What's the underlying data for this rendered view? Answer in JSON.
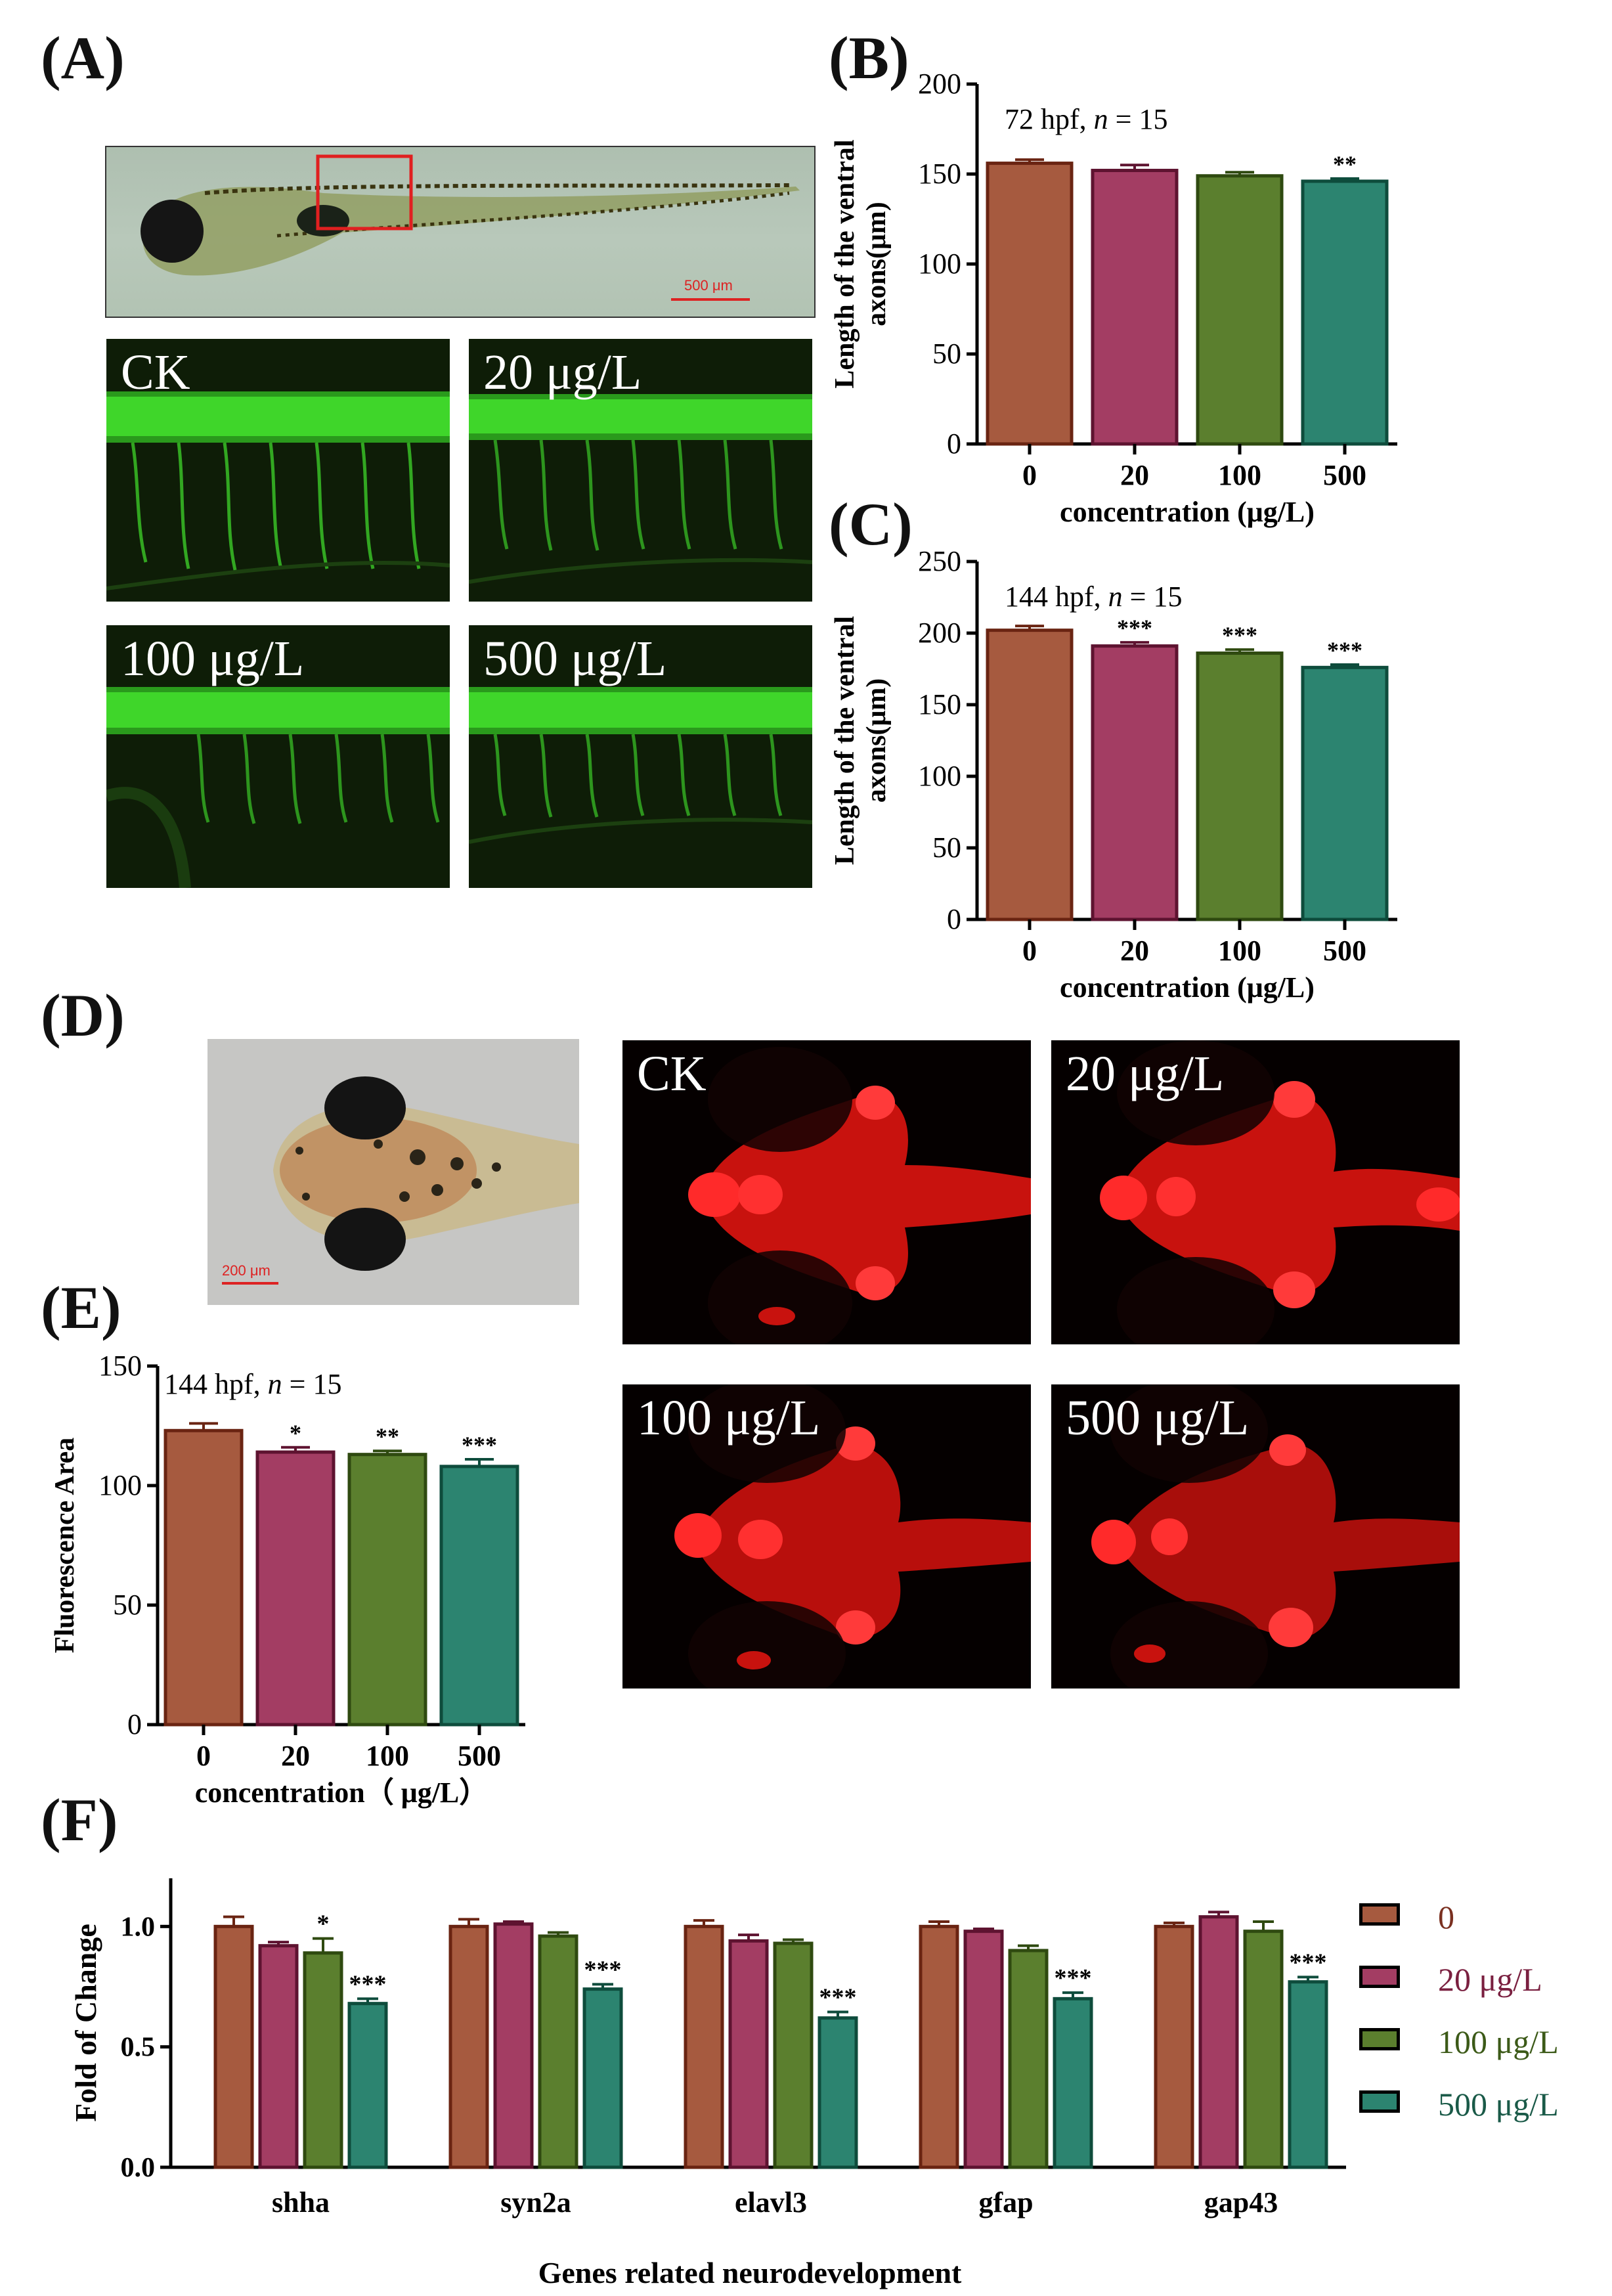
{
  "colors": {
    "c0": {
      "fill": "#a65a3f",
      "stroke": "#6a2412"
    },
    "c20": {
      "fill": "#a33d63",
      "stroke": "#5e1330"
    },
    "c100": {
      "fill": "#5b7f2e",
      "stroke": "#2f4a10"
    },
    "c500": {
      "fill": "#2c8470",
      "stroke": "#0e4c3c"
    }
  },
  "panels": {
    "A": {
      "label": "(A)",
      "scale_text": "500 μm",
      "images": [
        {
          "label": "CK"
        },
        {
          "label": "20 μg/L"
        },
        {
          "label": "100 μg/L"
        },
        {
          "label": "500 μg/L"
        }
      ]
    },
    "D": {
      "label": "(D)",
      "scale_text": "200 μm",
      "images": [
        {
          "label": "CK"
        },
        {
          "label": "20 μg/L"
        },
        {
          "label": "100 μg/L"
        },
        {
          "label": "500 μg/L"
        }
      ]
    },
    "B": {
      "label": "(B)"
    },
    "C": {
      "label": "(C)"
    },
    "E": {
      "label": "(E)"
    },
    "F": {
      "label": "(F)"
    }
  },
  "chart_data": [
    {
      "id": "B",
      "type": "bar",
      "annotation_pre": "72 hpf, ",
      "annotation_n": "n",
      "annotation_post": " = 15",
      "categories": [
        "0",
        "20",
        "100",
        "500"
      ],
      "values": [
        156,
        152,
        149,
        146
      ],
      "errors": [
        2,
        3,
        2,
        1.5
      ],
      "significance": [
        "",
        "",
        "",
        "**"
      ],
      "ylabel_line1": "Length of the ventral",
      "ylabel_line2": "axons(μm)",
      "xlabel": "concentration (μg/L)",
      "ylim": [
        0,
        200
      ],
      "yticks": [
        0,
        50,
        100,
        150,
        200
      ]
    },
    {
      "id": "C",
      "type": "bar",
      "annotation_pre": "144 hpf, ",
      "annotation_n": "n",
      "annotation_post": " = 15",
      "categories": [
        "0",
        "20",
        "100",
        "500"
      ],
      "values": [
        202,
        191,
        186,
        176
      ],
      "errors": [
        3,
        2.5,
        2.5,
        2
      ],
      "significance": [
        "",
        "***",
        "***",
        "***"
      ],
      "ylabel_line1": "Length of the ventral",
      "ylabel_line2": "axons(μm)",
      "xlabel": "concentration (μg/L)",
      "ylim": [
        0,
        250
      ],
      "yticks": [
        0,
        50,
        100,
        150,
        200,
        250
      ]
    },
    {
      "id": "E",
      "type": "bar",
      "annotation_pre": "144 hpf, ",
      "annotation_n": "n",
      "annotation_post": " = 15",
      "categories": [
        "0",
        "20",
        "100",
        "500"
      ],
      "values": [
        123,
        114,
        113,
        108
      ],
      "errors": [
        3,
        2,
        1.5,
        3
      ],
      "significance": [
        "",
        "*",
        "**",
        "***"
      ],
      "ylabel_line1": "Fluorescence Area",
      "ylabel_line2": "",
      "xlabel": "concentration（ μg/L）",
      "ylim": [
        0,
        150
      ],
      "yticks": [
        0,
        50,
        100,
        150
      ]
    },
    {
      "id": "F",
      "type": "bar",
      "categories": [
        "shha",
        "syn2a",
        "elavl3",
        "gfap",
        "gap43"
      ],
      "series": [
        {
          "name": "0",
          "values": [
            1.0,
            1.0,
            1.0,
            1.0,
            1.0
          ],
          "errors": [
            0.04,
            0.03,
            0.025,
            0.02,
            0.015
          ],
          "significance": [
            "",
            "",
            "",
            "",
            ""
          ]
        },
        {
          "name": "20 μg/L",
          "values": [
            0.92,
            1.01,
            0.94,
            0.98,
            1.04
          ],
          "errors": [
            0.015,
            0.01,
            0.025,
            0.01,
            0.02
          ],
          "significance": [
            "",
            "",
            "",
            "",
            ""
          ]
        },
        {
          "name": "100 μg/L",
          "values": [
            0.89,
            0.96,
            0.93,
            0.9,
            0.98
          ],
          "errors": [
            0.06,
            0.015,
            0.015,
            0.02,
            0.04
          ],
          "significance": [
            "*",
            "",
            "",
            "",
            ""
          ]
        },
        {
          "name": "500 μg/L",
          "values": [
            0.68,
            0.74,
            0.62,
            0.7,
            0.77
          ],
          "errors": [
            0.02,
            0.02,
            0.025,
            0.025,
            0.02
          ],
          "significance": [
            "***",
            "***",
            "***",
            "***",
            "***"
          ]
        }
      ],
      "ylabel": "Fold of Change",
      "xlabel": "Genes related neurodevelopment",
      "ylim": [
        0,
        1.2
      ],
      "yticks": [
        "0.0",
        "0.5",
        "1.0"
      ],
      "legend_position": "right"
    }
  ]
}
